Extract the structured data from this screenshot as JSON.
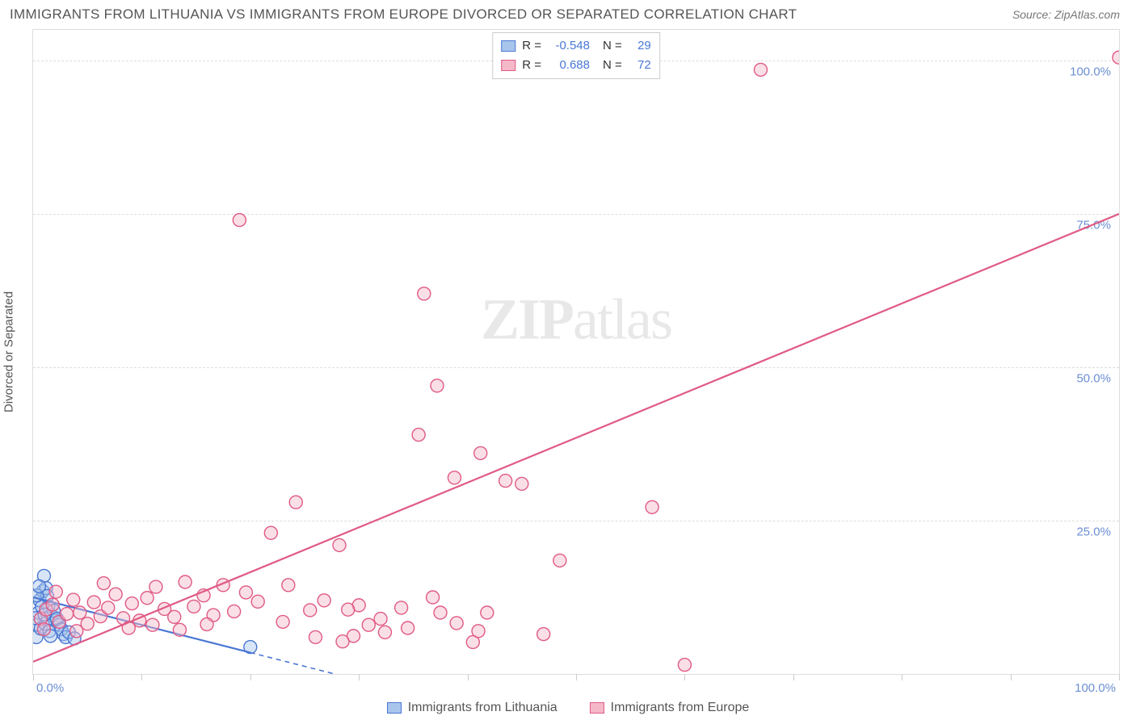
{
  "header": {
    "title": "IMMIGRANTS FROM LITHUANIA VS IMMIGRANTS FROM EUROPE DIVORCED OR SEPARATED CORRELATION CHART",
    "source": "Source: ZipAtlas.com"
  },
  "chart": {
    "type": "scatter",
    "ylabel": "Divorced or Separated",
    "xlim": [
      0,
      100
    ],
    "ylim": [
      0,
      105
    ],
    "background_color": "#ffffff",
    "grid_color": "#dddddd",
    "border_color": "#dddddd",
    "gridline_style": "dashed",
    "tick_label_color": "#6b8fd4",
    "tick_fontsize": 15,
    "ylabel_color": "#555555",
    "ylabel_fontsize": 15,
    "yticks": [
      {
        "pos": 25,
        "label": "25.0%"
      },
      {
        "pos": 50,
        "label": "50.0%"
      },
      {
        "pos": 75,
        "label": "75.0%"
      },
      {
        "pos": 100,
        "label": "100.0%"
      }
    ],
    "xticks_minor": [
      0,
      10,
      20,
      30,
      40,
      50,
      60,
      70,
      80,
      90,
      100
    ],
    "xtick_labels": [
      {
        "pos": 0,
        "label": "0.0%",
        "align": "left"
      },
      {
        "pos": 100,
        "label": "100.0%",
        "align": "right"
      }
    ],
    "marker_radius": 8,
    "marker_stroke_width": 1.4,
    "trendline_width_solid": 2.2,
    "trendline_width_dash": 1.6,
    "series": [
      {
        "name": "Immigrants from Lithuania",
        "fill_color": "#a8c5ec",
        "stroke_color": "#4a77d4",
        "fill_opacity": 0.45,
        "R": "-0.548",
        "N": "29",
        "trendline": {
          "x1": 0,
          "y1": 12.5,
          "x2": 20,
          "y2": 3.5,
          "dash_from_x": 20,
          "dash_to_x": 38
        },
        "points": [
          [
            0.4,
            8.0
          ],
          [
            0.5,
            10.0
          ],
          [
            0.6,
            12.0
          ],
          [
            0.9,
            13.5
          ],
          [
            1.0,
            16.0
          ],
          [
            1.2,
            14.0
          ],
          [
            1.4,
            11.0
          ],
          [
            1.7,
            9.5
          ],
          [
            2.0,
            8.7
          ],
          [
            2.4,
            8.0
          ],
          [
            2.8,
            6.5
          ],
          [
            0.3,
            6.0
          ],
          [
            0.7,
            7.4
          ],
          [
            1.1,
            8.2
          ],
          [
            1.5,
            7.0
          ],
          [
            0.8,
            11.0
          ],
          [
            1.3,
            12.7
          ],
          [
            1.9,
            10.3
          ],
          [
            2.2,
            9.0
          ],
          [
            2.6,
            7.3
          ],
          [
            3.0,
            6.0
          ],
          [
            3.3,
            6.8
          ],
          [
            3.8,
            5.8
          ],
          [
            1.6,
            6.2
          ],
          [
            0.2,
            9.1
          ],
          [
            0.35,
            12.8
          ],
          [
            0.55,
            14.3
          ],
          [
            20.0,
            4.4
          ],
          [
            1.05,
            9.7
          ]
        ]
      },
      {
        "name": "Immigrants from Europe",
        "fill_color": "#f5b8c9",
        "stroke_color": "#e05a85",
        "fill_opacity": 0.45,
        "R": "0.688",
        "N": "72",
        "trendline": {
          "x1": 0,
          "y1": 2.0,
          "x2": 100,
          "y2": 75.0
        },
        "points": [
          [
            0.7,
            9.0
          ],
          [
            1.2,
            10.5
          ],
          [
            1.8,
            11.3
          ],
          [
            2.4,
            8.5
          ],
          [
            3.1,
            9.8
          ],
          [
            3.7,
            12.1
          ],
          [
            4.3,
            10.0
          ],
          [
            5.0,
            8.2
          ],
          [
            5.6,
            11.7
          ],
          [
            6.2,
            9.4
          ],
          [
            6.9,
            10.8
          ],
          [
            7.6,
            13.0
          ],
          [
            8.3,
            9.1
          ],
          [
            9.1,
            11.5
          ],
          [
            9.8,
            8.7
          ],
          [
            10.5,
            12.4
          ],
          [
            11.3,
            14.2
          ],
          [
            12.1,
            10.6
          ],
          [
            13.0,
            9.3
          ],
          [
            14.0,
            15.0
          ],
          [
            14.8,
            11.0
          ],
          [
            15.7,
            12.8
          ],
          [
            16.6,
            9.6
          ],
          [
            17.5,
            14.5
          ],
          [
            18.5,
            10.2
          ],
          [
            19.6,
            13.3
          ],
          [
            20.7,
            11.8
          ],
          [
            21.9,
            23.0
          ],
          [
            23.0,
            8.5
          ],
          [
            24.2,
            28.0
          ],
          [
            25.5,
            10.4
          ],
          [
            26.8,
            12.0
          ],
          [
            28.2,
            21.0
          ],
          [
            29.5,
            6.2
          ],
          [
            30.9,
            8.0
          ],
          [
            32.4,
            6.8
          ],
          [
            33.9,
            10.8
          ],
          [
            35.5,
            39.0
          ],
          [
            36.0,
            62.0
          ],
          [
            37.2,
            47.0
          ],
          [
            38.8,
            32.0
          ],
          [
            40.5,
            5.2
          ],
          [
            41.2,
            36.0
          ],
          [
            41.8,
            10.0
          ],
          [
            43.5,
            31.5
          ],
          [
            45.0,
            31.0
          ],
          [
            47.0,
            6.5
          ],
          [
            48.5,
            18.5
          ],
          [
            57.0,
            27.2
          ],
          [
            60.0,
            1.5
          ],
          [
            67.0,
            98.5
          ],
          [
            100.0,
            100.5
          ],
          [
            1.0,
            7.3
          ],
          [
            2.1,
            13.4
          ],
          [
            4.0,
            7.0
          ],
          [
            6.5,
            14.8
          ],
          [
            8.8,
            7.5
          ],
          [
            11.0,
            8.0
          ],
          [
            13.5,
            7.2
          ],
          [
            16.0,
            8.1
          ],
          [
            23.5,
            14.5
          ],
          [
            26.0,
            6.0
          ],
          [
            28.5,
            5.3
          ],
          [
            30.0,
            11.2
          ],
          [
            32.0,
            9.0
          ],
          [
            34.5,
            7.5
          ],
          [
            36.8,
            12.5
          ],
          [
            39.0,
            8.3
          ],
          [
            41.0,
            7.0
          ],
          [
            19.0,
            74.0
          ],
          [
            37.5,
            10.0
          ],
          [
            29.0,
            10.5
          ]
        ]
      }
    ],
    "stats_box": {
      "rows": [
        {
          "swatch_fill": "#a8c5ec",
          "swatch_stroke": "#4a77d4",
          "R": "-0.548",
          "N": "29"
        },
        {
          "swatch_fill": "#f5b8c9",
          "swatch_stroke": "#e05a85",
          "R": "0.688",
          "N": "72"
        }
      ],
      "label_R": "R =",
      "label_N": "N =",
      "value_color": "#4a77d4",
      "label_color": "#333333",
      "border_color": "#cccccc"
    },
    "legend": {
      "items": [
        {
          "swatch_fill": "#a8c5ec",
          "swatch_stroke": "#4a77d4",
          "label": "Immigrants from Lithuania"
        },
        {
          "swatch_fill": "#f5b8c9",
          "swatch_stroke": "#e05a85",
          "label": "Immigrants from Europe"
        }
      ],
      "text_color": "#555555",
      "fontsize": 16
    },
    "watermark": {
      "text_bold": "ZIP",
      "text_rest": "atlas",
      "opacity": 0.13,
      "fontsize": 72,
      "color": "#555555"
    }
  }
}
